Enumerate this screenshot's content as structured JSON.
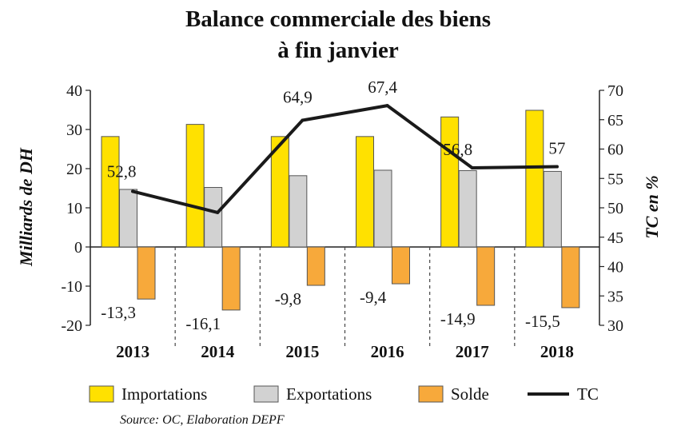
{
  "chart_data": {
    "type": "bar",
    "title": [
      "Balance commerciale des biens",
      "à fin janvier"
    ],
    "categories": [
      "2013",
      "2014",
      "2015",
      "2016",
      "2017",
      "2018"
    ],
    "ylabel": "Milliards de DH",
    "y2label": "TC en %",
    "ylim": [
      -20,
      40
    ],
    "y2lim": [
      30,
      70
    ],
    "yticks": [
      "40",
      "30",
      "20",
      "10",
      "0",
      "-10",
      "-20"
    ],
    "y2ticks": [
      "70",
      "65",
      "60",
      "55",
      "50",
      "45",
      "40",
      "35",
      "30"
    ],
    "series": [
      {
        "name": "Importations",
        "kind": "bar",
        "axis": "left",
        "color": "#FFE100",
        "values": [
          28.2,
          31.3,
          28.2,
          28.2,
          33.2,
          34.9
        ]
      },
      {
        "name": "Exportations",
        "kind": "bar",
        "axis": "left",
        "color": "#D2D2D2",
        "values": [
          14.7,
          15.2,
          18.2,
          19.6,
          19.5,
          19.3
        ]
      },
      {
        "name": "Solde",
        "kind": "bar",
        "axis": "left",
        "color": "#F7A93B",
        "values": [
          -13.3,
          -16.1,
          -9.8,
          -9.4,
          -14.9,
          -15.5
        ],
        "labels": [
          "-13,3",
          "-16,1",
          "-9,8",
          "-9,4",
          "-14,9",
          "-15,5"
        ]
      },
      {
        "name": "TC",
        "kind": "line",
        "axis": "right",
        "color": "#1a1a1a",
        "values": [
          52.8,
          49.2,
          64.9,
          67.4,
          56.8,
          57.0
        ],
        "labels": [
          "52,8",
          "",
          "64,9",
          "67,4",
          "56,8",
          "57"
        ]
      }
    ],
    "legend": [
      "Importations",
      "Exportations",
      "Solde",
      "TC"
    ],
    "legend_position": "bottom",
    "source": "Source: OC, Elaboration DEPF"
  }
}
